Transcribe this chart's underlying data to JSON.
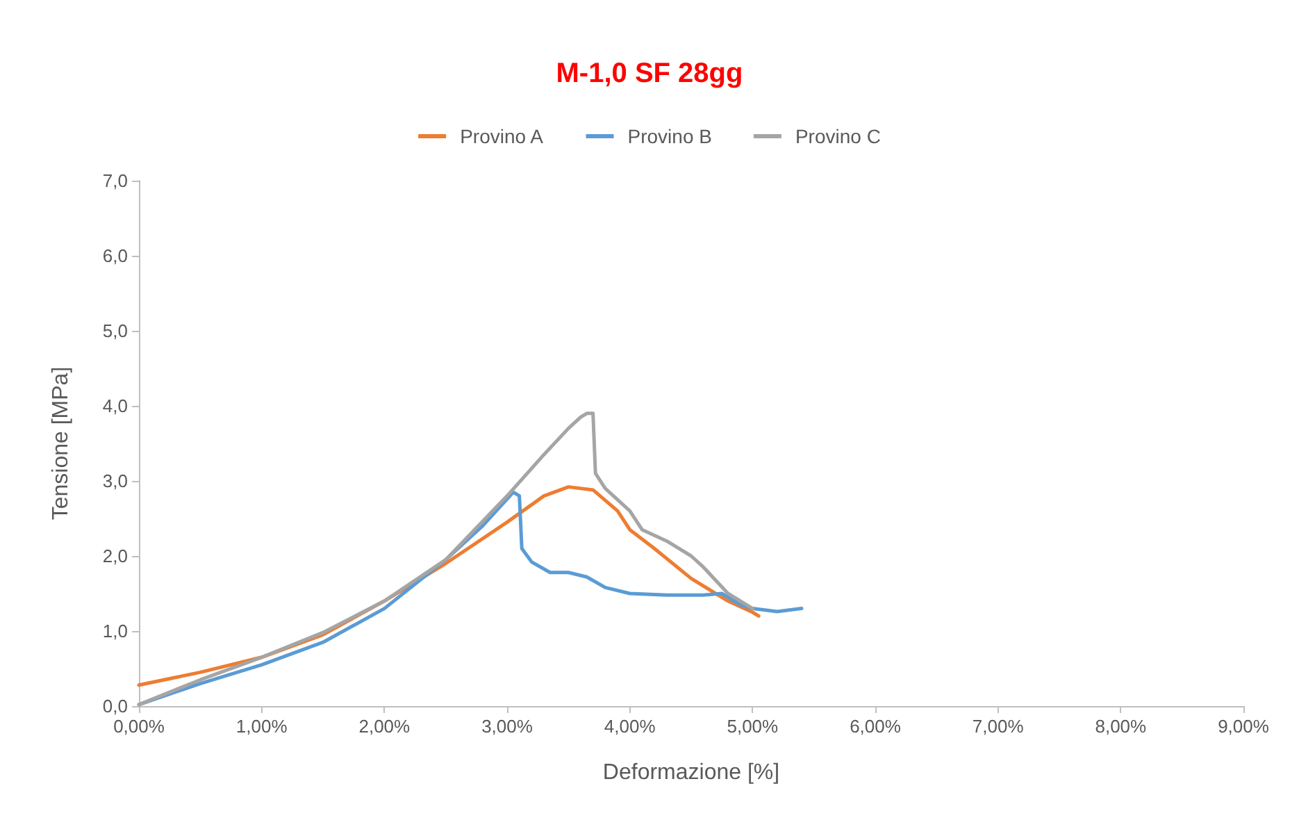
{
  "chart_data": {
    "type": "line",
    "title": "M-1,0 SF 28gg",
    "xlabel": "Deformazione [%]",
    "ylabel": "Tensione [MPa]",
    "xlim": [
      0,
      9
    ],
    "xticks": [
      {
        "value": 0,
        "label": "0,00%"
      },
      {
        "value": 1,
        "label": "1,00%"
      },
      {
        "value": 2,
        "label": "2,00%"
      },
      {
        "value": 3,
        "label": "3,00%"
      },
      {
        "value": 4,
        "label": "4,00%"
      },
      {
        "value": 5,
        "label": "5,00%"
      },
      {
        "value": 6,
        "label": "6,00%"
      },
      {
        "value": 7,
        "label": "7,00%"
      },
      {
        "value": 8,
        "label": "8,00%"
      },
      {
        "value": 9,
        "label": "9,00%"
      }
    ],
    "ylim": [
      0,
      7
    ],
    "yticks": [
      {
        "value": 0,
        "label": "0,0"
      },
      {
        "value": 1,
        "label": "1,0"
      },
      {
        "value": 2,
        "label": "2,0"
      },
      {
        "value": 3,
        "label": "3,0"
      },
      {
        "value": 4,
        "label": "4,0"
      },
      {
        "value": 5,
        "label": "5,0"
      },
      {
        "value": 6,
        "label": "6,0"
      },
      {
        "value": 7,
        "label": "7,0"
      }
    ],
    "grid": false,
    "legend": "top",
    "marker": "none",
    "line_style": "solid",
    "series": [
      {
        "name": "Provino A",
        "color": "#ed7d31",
        "x": [
          0,
          0.5,
          1.0,
          1.5,
          2.0,
          2.5,
          3.0,
          3.3,
          3.5,
          3.7,
          3.9,
          4.0,
          4.2,
          4.5,
          4.8,
          5.0,
          5.05
        ],
        "values": [
          0.28,
          0.45,
          0.65,
          0.95,
          1.4,
          1.9,
          2.45,
          2.8,
          2.92,
          2.88,
          2.6,
          2.35,
          2.1,
          1.7,
          1.4,
          1.25,
          1.2
        ]
      },
      {
        "name": "Provino B",
        "color": "#5b9bd5",
        "x": [
          0,
          0.5,
          1.0,
          1.5,
          2.0,
          2.5,
          2.8,
          3.05,
          3.1,
          3.12,
          3.2,
          3.35,
          3.5,
          3.65,
          3.8,
          4.0,
          4.3,
          4.6,
          4.75,
          4.9,
          5.0,
          5.2,
          5.4
        ],
        "values": [
          0.02,
          0.3,
          0.55,
          0.85,
          1.3,
          1.95,
          2.4,
          2.85,
          2.8,
          2.1,
          1.92,
          1.78,
          1.78,
          1.72,
          1.58,
          1.5,
          1.48,
          1.48,
          1.5,
          1.35,
          1.3,
          1.26,
          1.3
        ]
      },
      {
        "name": "Provino C",
        "color": "#a5a5a5",
        "x": [
          0,
          0.5,
          1.0,
          1.5,
          2.0,
          2.5,
          3.0,
          3.3,
          3.5,
          3.6,
          3.65,
          3.7,
          3.72,
          3.8,
          4.0,
          4.1,
          4.3,
          4.5,
          4.6,
          4.8,
          5.0
        ],
        "values": [
          0.02,
          0.35,
          0.65,
          0.98,
          1.4,
          1.95,
          2.8,
          3.35,
          3.7,
          3.85,
          3.9,
          3.9,
          3.1,
          2.9,
          2.6,
          2.35,
          2.2,
          2.0,
          1.85,
          1.5,
          1.3
        ]
      }
    ]
  }
}
